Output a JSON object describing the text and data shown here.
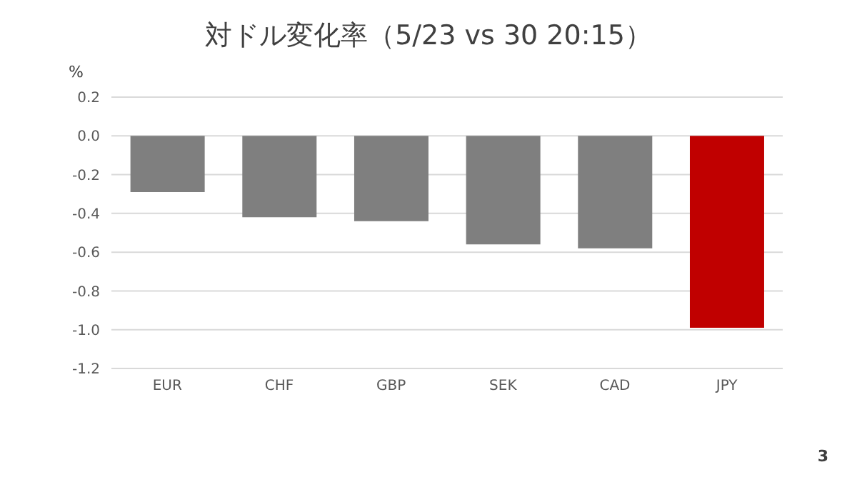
{
  "chart_data": {
    "type": "bar",
    "title": "対ドル変化率（5/23 vs 30 20:15）",
    "ylabel": "%",
    "categories": [
      "EUR",
      "CHF",
      "GBP",
      "SEK",
      "CAD",
      "JPY"
    ],
    "values": [
      -0.29,
      -0.42,
      -0.44,
      -0.56,
      -0.58,
      -0.99
    ],
    "colors": [
      "#7f7f7f",
      "#7f7f7f",
      "#7f7f7f",
      "#7f7f7f",
      "#7f7f7f",
      "#c00000"
    ],
    "ylim": [
      -1.2,
      0.2
    ],
    "yticks": [
      {
        "value": -1.2,
        "label": "-1.2"
      },
      {
        "value": -1,
        "label": "-1.0"
      },
      {
        "value": -0.8,
        "label": "-0.8"
      },
      {
        "value": -0.6,
        "label": "-0.6"
      },
      {
        "value": -0.4,
        "label": "-0.4"
      },
      {
        "value": -0.2,
        "label": "-0.2"
      },
      {
        "value": 0,
        "label": "0.0"
      },
      {
        "value": 0.2,
        "label": "0.2"
      }
    ],
    "grid": "y",
    "legend": false,
    "annotations": [
      "3"
    ]
  }
}
